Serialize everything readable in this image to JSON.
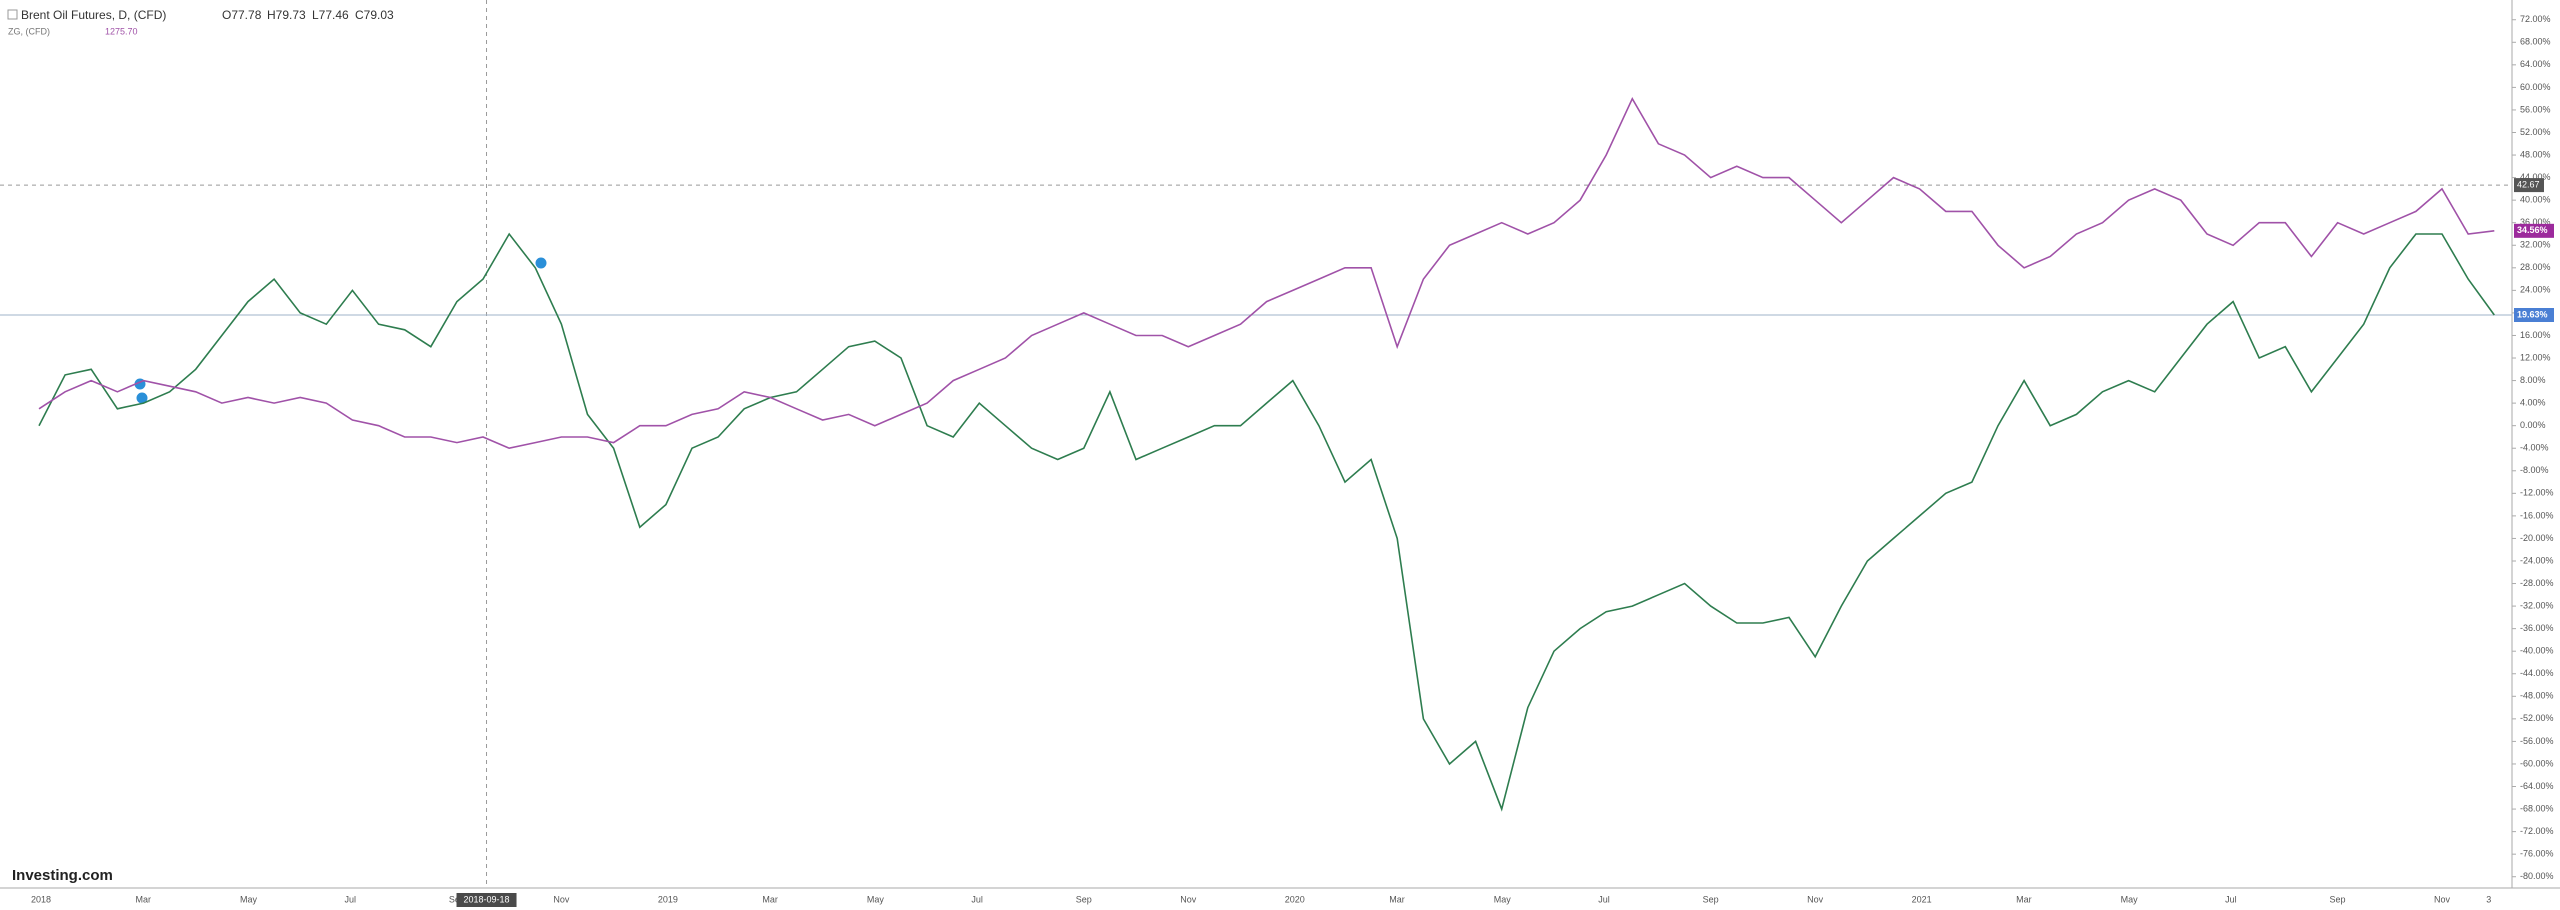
{
  "chart_data": {
    "type": "line",
    "header": {
      "title": "Brent Oil Futures, D, (CFD)",
      "ohlc": [
        "O77.78",
        "H79.73",
        "L77.46",
        "C79.03"
      ],
      "second_name": "ZG, (CFD)",
      "second_value": "1275.70"
    },
    "logo": "Investing.com",
    "categories": [
      "2018",
      null,
      null,
      null,
      "Mar",
      null,
      null,
      null,
      "May",
      null,
      null,
      null,
      "Jul",
      null,
      null,
      null,
      "Sep",
      null,
      null,
      null,
      "Nov",
      null,
      null,
      null,
      "2019",
      null,
      null,
      null,
      "Mar",
      null,
      null,
      null,
      "May",
      null,
      null,
      null,
      "Jul",
      null,
      null,
      null,
      "Sep",
      null,
      null,
      null,
      "Nov",
      null,
      null,
      null,
      "2020",
      null,
      null,
      null,
      "Mar",
      null,
      null,
      null,
      "May",
      null,
      null,
      null,
      "Jul",
      null,
      null,
      null,
      "Sep",
      null,
      null,
      null,
      "Nov",
      null,
      null,
      null,
      "2021",
      null,
      null,
      null,
      "Mar",
      null,
      null,
      null,
      "May",
      null,
      null,
      null,
      "Jul",
      null,
      null,
      null,
      "Sep",
      null,
      null,
      null,
      "Nov",
      null,
      "3"
    ],
    "series": [
      {
        "name": "Brent Oil Futures, D, (CFD)",
        "color": "#2e7d4f",
        "last_label": "19.63%",
        "last_label_color": "#4a7fd4",
        "values": [
          0,
          9,
          10,
          3,
          4,
          6,
          10,
          16,
          22,
          26,
          20,
          18,
          24,
          18,
          17,
          14,
          22,
          26,
          34,
          28,
          18,
          2,
          -4,
          -18,
          -14,
          -4,
          -2,
          3,
          5,
          6,
          10,
          14,
          15,
          12,
          0,
          -2,
          4,
          0,
          -4,
          -6,
          -4,
          6,
          -6,
          -4,
          -2,
          0,
          0,
          4,
          8,
          0,
          -10,
          -6,
          -20,
          -52,
          -60,
          -56,
          -68,
          -50,
          -40,
          -36,
          -33,
          -32,
          -30,
          -28,
          -32,
          -35,
          -35,
          -34,
          -41,
          -32,
          -24,
          -20,
          -16,
          -12,
          -10,
          0,
          8,
          0,
          2,
          6,
          8,
          6,
          12,
          18,
          22,
          12,
          14,
          6,
          12,
          18,
          28,
          34,
          34,
          26,
          19.63
        ]
      },
      {
        "name": "ZG, (CFD)",
        "color": "#a052a8",
        "last_label": "34.56%",
        "last_label_color": "#9c2a9c",
        "values": [
          3,
          6,
          8,
          6,
          8,
          7,
          6,
          4,
          5,
          4,
          5,
          4,
          1,
          0,
          -2,
          -2,
          -3,
          -2,
          -4,
          -3,
          -2,
          -2,
          -3,
          0,
          0,
          2,
          3,
          6,
          5,
          3,
          1,
          2,
          0,
          2,
          4,
          8,
          10,
          12,
          16,
          18,
          20,
          18,
          16,
          16,
          14,
          16,
          18,
          22,
          24,
          26,
          28,
          28,
          14,
          26,
          32,
          34,
          36,
          34,
          36,
          40,
          48,
          58,
          50,
          48,
          44,
          46,
          44,
          44,
          40,
          36,
          40,
          44,
          42,
          38,
          38,
          32,
          28,
          30,
          34,
          36,
          40,
          42,
          40,
          34,
          32,
          36,
          36,
          30,
          36,
          34,
          36,
          38,
          42,
          34,
          34.56
        ]
      }
    ],
    "crosshair": {
      "date": "2018-09-18",
      "y": 42.67,
      "y_label": "42.67"
    },
    "ylim": [
      -82,
      75.5
    ],
    "yticks": [
      {
        "value": 72,
        "label": "72.00%"
      },
      {
        "value": 68,
        "label": "68.00%"
      },
      {
        "value": 64,
        "label": "64.00%"
      },
      {
        "value": 60,
        "label": "60.00%"
      },
      {
        "value": 56,
        "label": "56.00%"
      },
      {
        "value": 52,
        "label": "52.00%"
      },
      {
        "value": 48,
        "label": "48.00%"
      },
      {
        "value": 44,
        "label": "44.00%"
      },
      {
        "value": 40,
        "label": "40.00%"
      },
      {
        "value": 36,
        "label": "36.00%"
      },
      {
        "value": 32,
        "label": "32.00%"
      },
      {
        "value": 28,
        "label": "28.00%"
      },
      {
        "value": 24,
        "label": "24.00%"
      },
      {
        "value": 20,
        "label": "20.00%"
      },
      {
        "value": 16,
        "label": "16.00%"
      },
      {
        "value": 12,
        "label": "12.00%"
      },
      {
        "value": 8,
        "label": "8.00%"
      },
      {
        "value": 4,
        "label": "4.00%"
      },
      {
        "value": 0,
        "label": "0.00%"
      },
      {
        "value": -4,
        "label": "-4.00%"
      },
      {
        "value": -8,
        "label": "-8.00%"
      },
      {
        "value": -12,
        "label": "-12.00%"
      },
      {
        "value": -16,
        "label": "-16.00%"
      },
      {
        "value": -20,
        "label": "-20.00%"
      },
      {
        "value": -24,
        "label": "-24.00%"
      },
      {
        "value": -28,
        "label": "-28.00%"
      },
      {
        "value": -32,
        "label": "-32.00%"
      },
      {
        "value": -36,
        "label": "-36.00%"
      },
      {
        "value": -40,
        "label": "-40.00%"
      },
      {
        "value": -44,
        "label": "-44.00%"
      },
      {
        "value": -48,
        "label": "-48.00%"
      },
      {
        "value": -52,
        "label": "-52.00%"
      },
      {
        "value": -56,
        "label": "-56.00%"
      },
      {
        "value": -60,
        "label": "-60.00%"
      },
      {
        "value": -64,
        "label": "-64.00%"
      },
      {
        "value": -68,
        "label": "-68.00%"
      },
      {
        "value": -72,
        "label": "-72.00%"
      },
      {
        "value": -76,
        "label": "-76.00%"
      },
      {
        "value": -80,
        "label": "-80.00%"
      }
    ],
    "grid": false
  }
}
